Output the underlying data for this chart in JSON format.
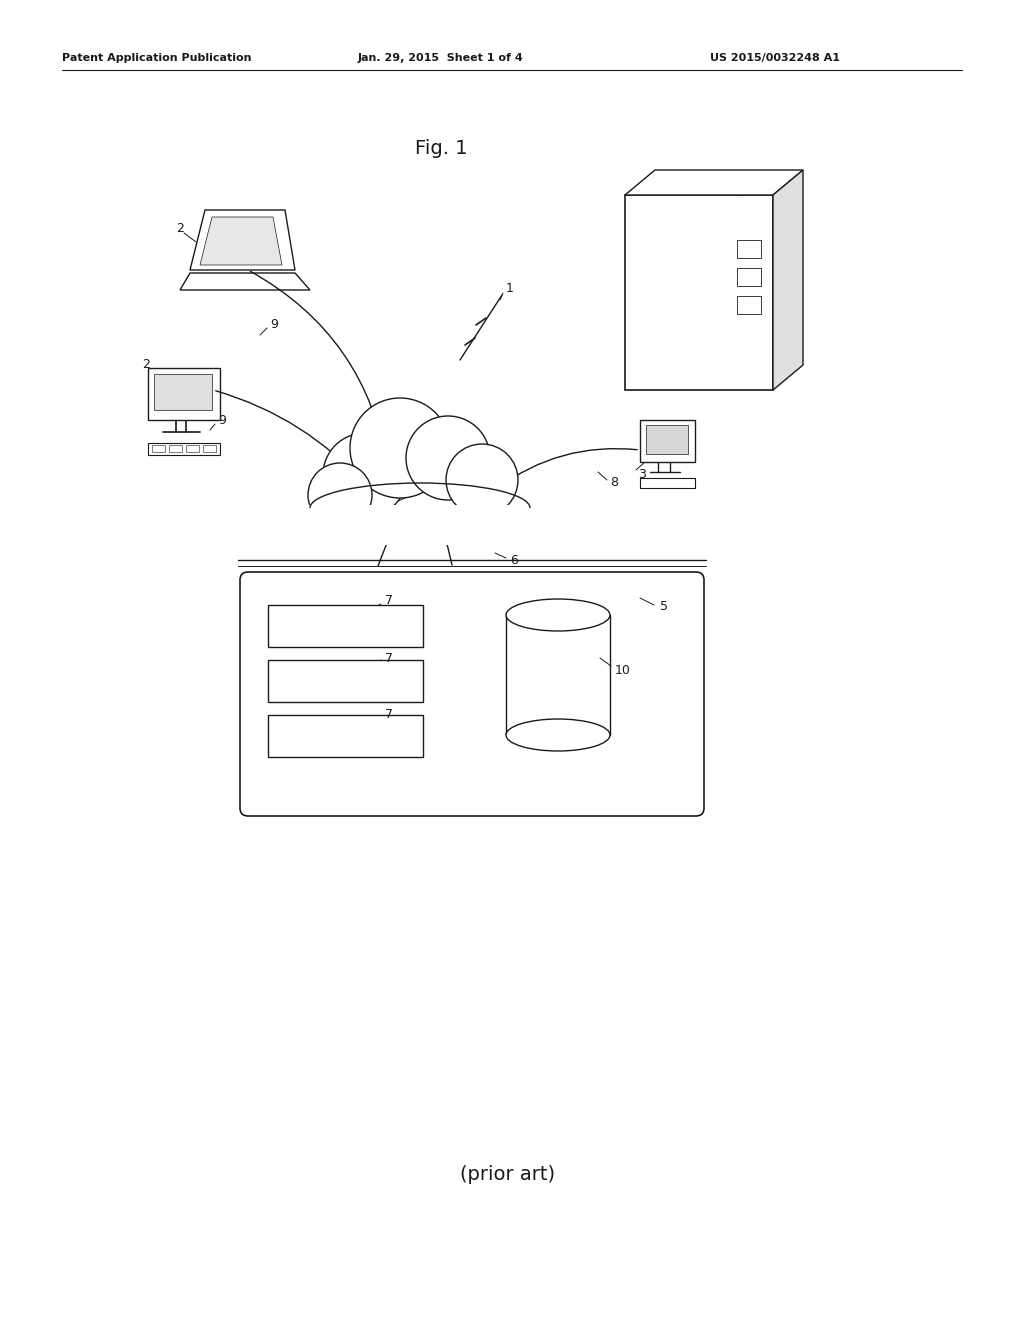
{
  "bg_color": "#ffffff",
  "header_left": "Patent Application Publication",
  "header_center": "Jan. 29, 2015  Sheet 1 of 4",
  "header_right": "US 2015/0032248 A1",
  "fig_label": "Fig. 1",
  "prior_art": "(prior art)"
}
